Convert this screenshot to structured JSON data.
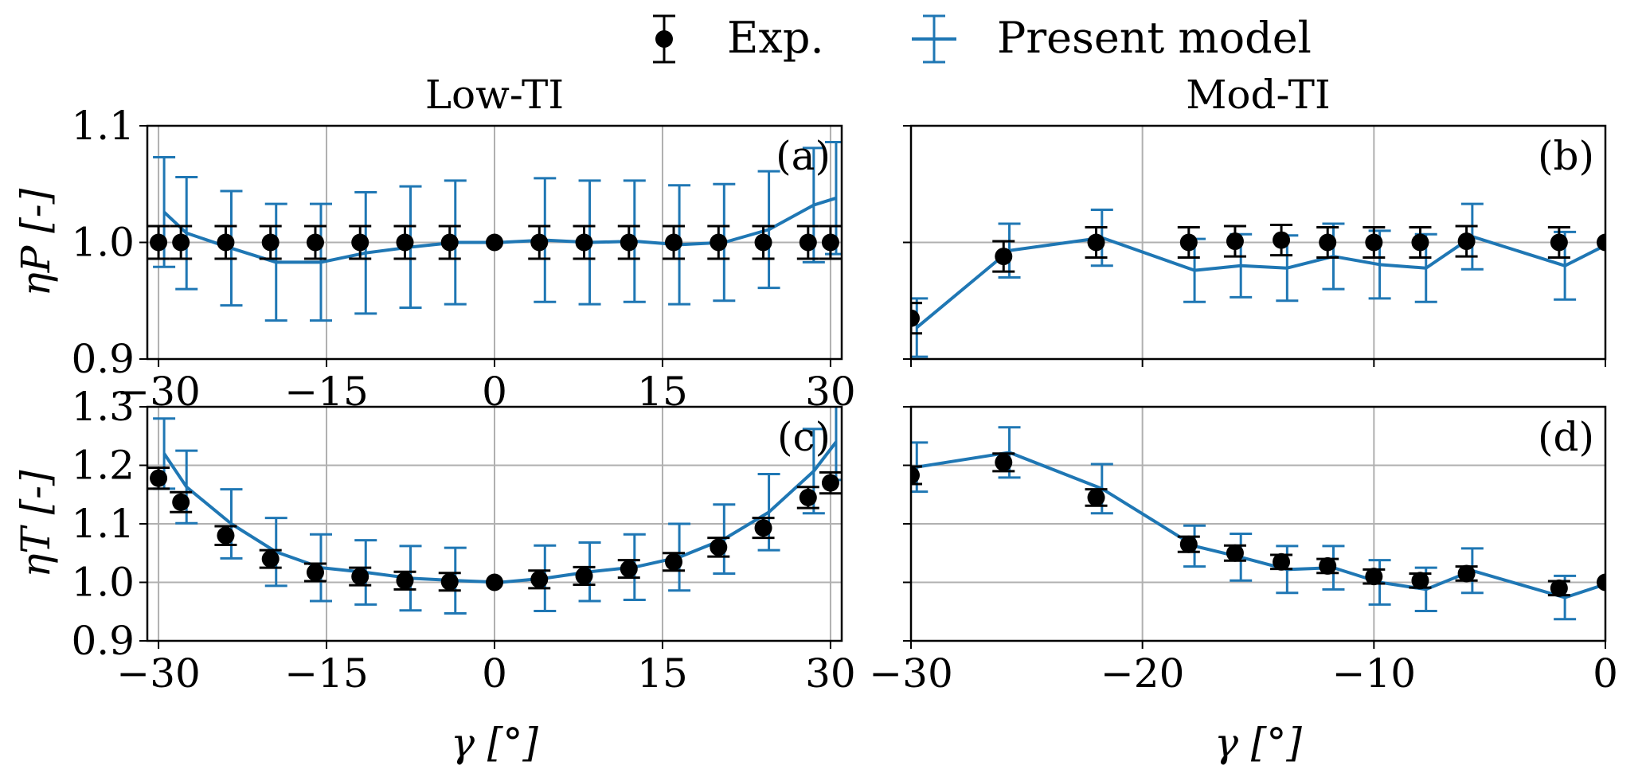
{
  "legend": {
    "exp_label": "Exp.",
    "model_label": "Present model"
  },
  "colors": {
    "model": "#1f77b4",
    "exp": "#000000",
    "grid": "#b0b0b0"
  },
  "chart_data": [
    {
      "id": "a",
      "panel_label": "(a)",
      "column_title": "Low-TI",
      "type": "line",
      "xlabel": "",
      "ylabel": "ηP [-]",
      "xlim": [
        -31,
        31
      ],
      "ylim": [
        0.9,
        1.1
      ],
      "xticks": [
        -30,
        -15,
        0,
        15,
        30
      ],
      "xtick_labels": [
        "−30",
        "−15",
        "0",
        "15",
        "30"
      ],
      "yticks": [
        0.9,
        1.0,
        1.1
      ],
      "ytick_labels": [
        "0.9",
        "1.0",
        "1.1"
      ],
      "grid": true,
      "series": [
        {
          "name": "Exp.",
          "x": [
            -30,
            -28,
            -24,
            -20,
            -16,
            -12,
            -8,
            -4,
            0,
            4,
            8,
            12,
            16,
            20,
            24,
            28,
            30
          ],
          "y": [
            1.0,
            1.0,
            1.0,
            1.0,
            1.0,
            1.0,
            1.0,
            1.0,
            1.0,
            1.0,
            1.0,
            1.0,
            1.0,
            1.0,
            1.0,
            1.0,
            1.0
          ],
          "err": [
            0.014,
            0.014,
            0.014,
            0.014,
            0.014,
            0.014,
            0.014,
            0.014,
            0.0,
            0.014,
            0.014,
            0.014,
            0.014,
            0.014,
            0.014,
            0.014,
            0.014
          ]
        },
        {
          "name": "Present model",
          "x": [
            -29.5,
            -27.5,
            -23.5,
            -19.5,
            -15.5,
            -11.5,
            -7.5,
            -3.5,
            0.5,
            4.5,
            8.5,
            12.5,
            16.5,
            20.5,
            24.5,
            28.5,
            30.5
          ],
          "y": [
            1.026,
            1.008,
            0.995,
            0.983,
            0.983,
            0.991,
            0.996,
            1.0,
            1.0,
            1.002,
            1.0,
            1.001,
            0.998,
            1.0,
            1.011,
            1.032,
            1.038
          ],
          "err": [
            0.047,
            0.048,
            0.049,
            0.05,
            0.05,
            0.052,
            0.052,
            0.053,
            0.0,
            0.053,
            0.053,
            0.052,
            0.051,
            0.05,
            0.05,
            0.049,
            0.048
          ]
        }
      ]
    },
    {
      "id": "b",
      "panel_label": "(b)",
      "column_title": "Mod-TI",
      "type": "line",
      "xlabel": "",
      "ylabel": "",
      "xlim": [
        -30,
        0
      ],
      "ylim": [
        0.9,
        1.1
      ],
      "xticks": [
        -30,
        -20,
        -10,
        0
      ],
      "xtick_labels": [
        "",
        "",
        "",
        ""
      ],
      "yticks": [
        0.9,
        1.0,
        1.1
      ],
      "ytick_labels": [
        "",
        "",
        ""
      ],
      "grid": true,
      "series": [
        {
          "name": "Exp.",
          "x": [
            -30,
            -26,
            -22,
            -18,
            -16,
            -14,
            -12,
            -10,
            -8,
            -6,
            -2,
            0
          ],
          "y": [
            0.935,
            0.988,
            1.0,
            1.0,
            1.001,
            1.002,
            1.0,
            1.0,
            1.0,
            1.001,
            1.0,
            1.0
          ],
          "err": [
            0.013,
            0.013,
            0.013,
            0.013,
            0.013,
            0.013,
            0.013,
            0.013,
            0.013,
            0.013,
            0.013,
            0.0
          ]
        },
        {
          "name": "Present model",
          "x": [
            -29.75,
            -25.75,
            -21.75,
            -17.75,
            -15.75,
            -13.75,
            -11.75,
            -9.75,
            -7.75,
            -5.75,
            -1.75,
            0.25
          ],
          "y": [
            0.927,
            0.993,
            1.004,
            0.976,
            0.98,
            0.978,
            0.988,
            0.981,
            0.978,
            1.005,
            0.98,
            1.0
          ],
          "err": [
            0.025,
            0.023,
            0.024,
            0.027,
            0.027,
            0.028,
            0.028,
            0.029,
            0.029,
            0.028,
            0.029,
            0.0
          ]
        }
      ]
    },
    {
      "id": "c",
      "panel_label": "(c)",
      "column_title": "",
      "type": "line",
      "xlabel": "γ [°]",
      "ylabel": "ηT [-]",
      "xlim": [
        -31,
        31
      ],
      "ylim": [
        0.9,
        1.3
      ],
      "xticks": [
        -30,
        -15,
        0,
        15,
        30
      ],
      "xtick_labels": [
        "−30",
        "−15",
        "0",
        "15",
        "30"
      ],
      "yticks": [
        0.9,
        1.0,
        1.1,
        1.2,
        1.3
      ],
      "ytick_labels": [
        "0.9",
        "1.0",
        "1.1",
        "1.2",
        "1.3"
      ],
      "grid": true,
      "series": [
        {
          "name": "Exp.",
          "x": [
            -30,
            -28,
            -24,
            -20,
            -16,
            -12,
            -8,
            -4,
            0,
            4,
            8,
            12,
            16,
            20,
            24,
            28,
            30
          ],
          "y": [
            1.178,
            1.137,
            1.08,
            1.04,
            1.017,
            1.01,
            1.003,
            1.001,
            1.0,
            1.005,
            1.011,
            1.023,
            1.035,
            1.06,
            1.093,
            1.145,
            1.17
          ],
          "err": [
            0.018,
            0.017,
            0.016,
            0.015,
            0.015,
            0.015,
            0.015,
            0.015,
            0.0,
            0.015,
            0.015,
            0.015,
            0.015,
            0.016,
            0.017,
            0.018,
            0.018
          ]
        },
        {
          "name": "Present model",
          "x": [
            -29.5,
            -27.5,
            -23.5,
            -19.5,
            -15.5,
            -11.5,
            -7.5,
            -3.5,
            0.5,
            4.5,
            8.5,
            12.5,
            16.5,
            20.5,
            24.5,
            28.5,
            30.5
          ],
          "y": [
            1.22,
            1.163,
            1.1,
            1.052,
            1.025,
            1.017,
            1.007,
            1.003,
            1.0,
            1.007,
            1.018,
            1.026,
            1.043,
            1.074,
            1.12,
            1.19,
            1.24
          ],
          "err": [
            0.06,
            0.062,
            0.059,
            0.058,
            0.057,
            0.055,
            0.055,
            0.056,
            0.0,
            0.056,
            0.05,
            0.056,
            0.057,
            0.059,
            0.065,
            0.072,
            0.065
          ]
        }
      ]
    },
    {
      "id": "d",
      "panel_label": "(d)",
      "column_title": "",
      "type": "line",
      "xlabel": "γ [°]",
      "ylabel": "",
      "xlim": [
        -30,
        0
      ],
      "ylim": [
        0.9,
        1.3
      ],
      "xticks": [
        -30,
        -20,
        -10,
        0
      ],
      "xtick_labels": [
        "−30",
        "−20",
        "−10",
        "0"
      ],
      "yticks": [
        0.9,
        1.0,
        1.1,
        1.2,
        1.3
      ],
      "ytick_labels": [
        "",
        "",
        "",
        "",
        ""
      ],
      "grid": true,
      "series": [
        {
          "name": "Exp.",
          "x": [
            -30,
            -26,
            -22,
            -18,
            -16,
            -14,
            -12,
            -10,
            -8,
            -6,
            -2,
            0
          ],
          "y": [
            1.183,
            1.205,
            1.145,
            1.065,
            1.05,
            1.035,
            1.028,
            1.01,
            1.003,
            1.015,
            0.99,
            1.0
          ],
          "err": [
            0.015,
            0.015,
            0.014,
            0.013,
            0.013,
            0.012,
            0.012,
            0.012,
            0.012,
            0.012,
            0.012,
            0.0
          ]
        },
        {
          "name": "Present model",
          "x": [
            -29.75,
            -25.75,
            -21.75,
            -17.75,
            -15.75,
            -13.75,
            -11.75,
            -9.75,
            -7.75,
            -5.75,
            -1.75,
            0.25
          ],
          "y": [
            1.197,
            1.222,
            1.16,
            1.062,
            1.043,
            1.022,
            1.025,
            1.0,
            0.988,
            1.02,
            0.974,
            1.0
          ],
          "err": [
            0.042,
            0.043,
            0.042,
            0.035,
            0.04,
            0.04,
            0.037,
            0.038,
            0.037,
            0.038,
            0.037,
            0.0
          ]
        }
      ]
    }
  ]
}
